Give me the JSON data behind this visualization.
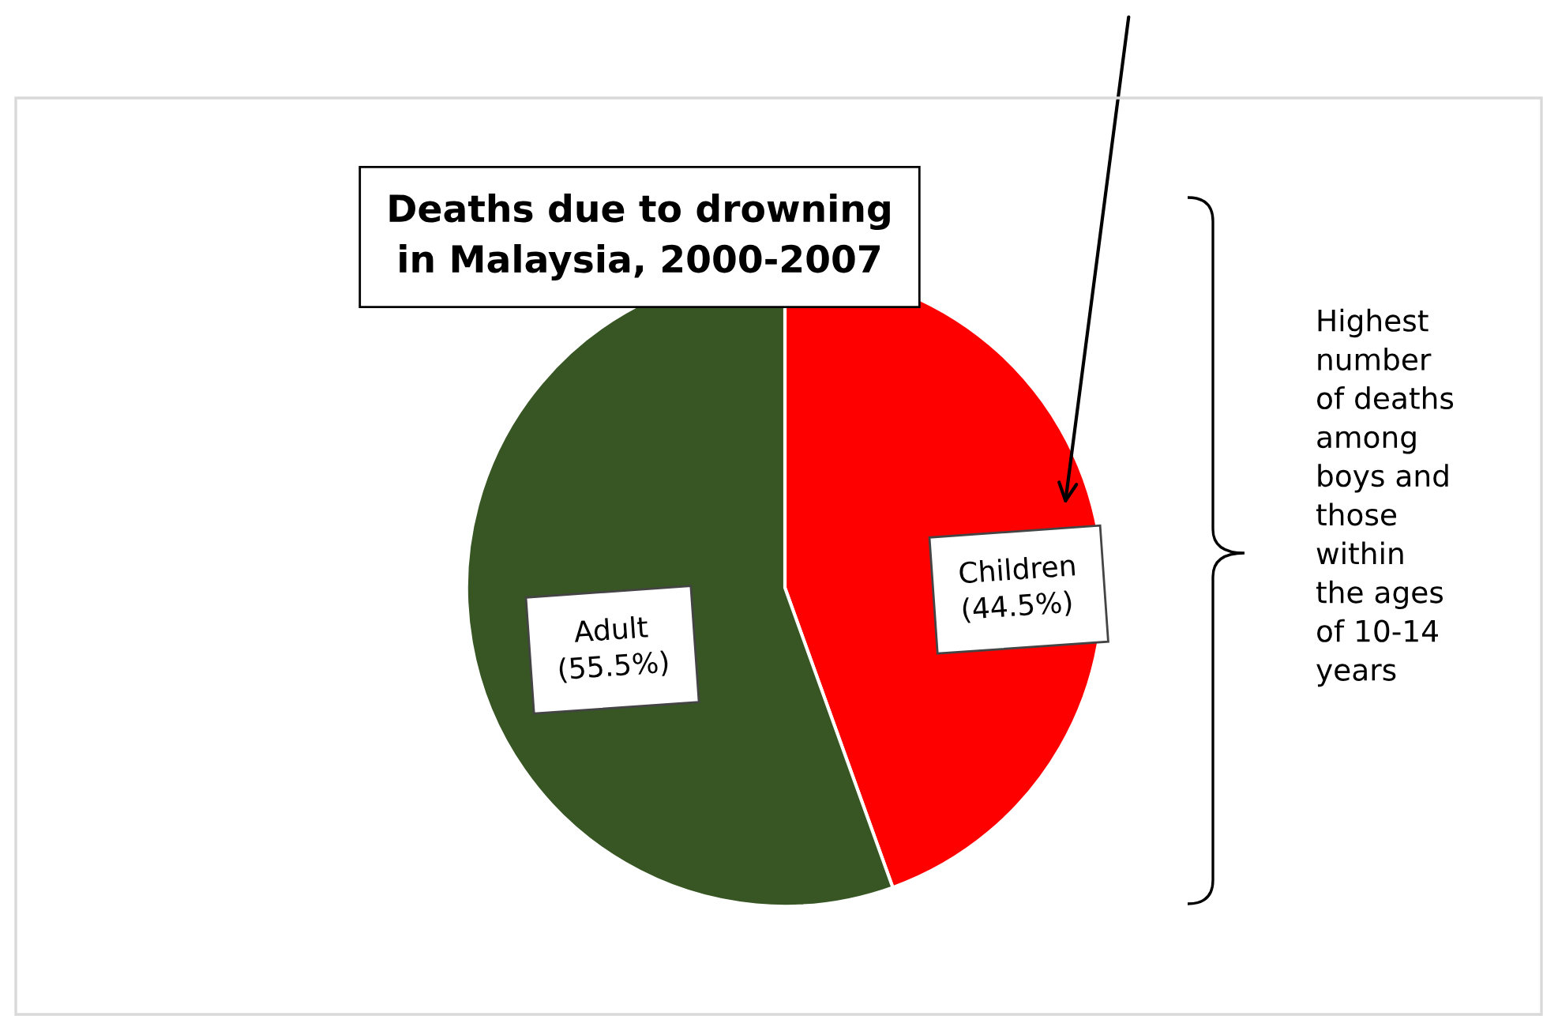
{
  "chart_data": {
    "type": "pie",
    "title": "Deaths due to drowning\nin Malaysia, 2000-2007",
    "categories": [
      "Children",
      "Adult"
    ],
    "values": [
      44.5,
      55.5
    ],
    "colors": [
      "#ff0000",
      "#375623"
    ],
    "value_labels": [
      "(44.5%)",
      "(55.5%)"
    ],
    "annotations": [
      "Highest\nnumber\nof deaths\namong\nboys and\nthose\nwithin\nthe ages\nof 10-14\nyears"
    ],
    "legend": false
  }
}
